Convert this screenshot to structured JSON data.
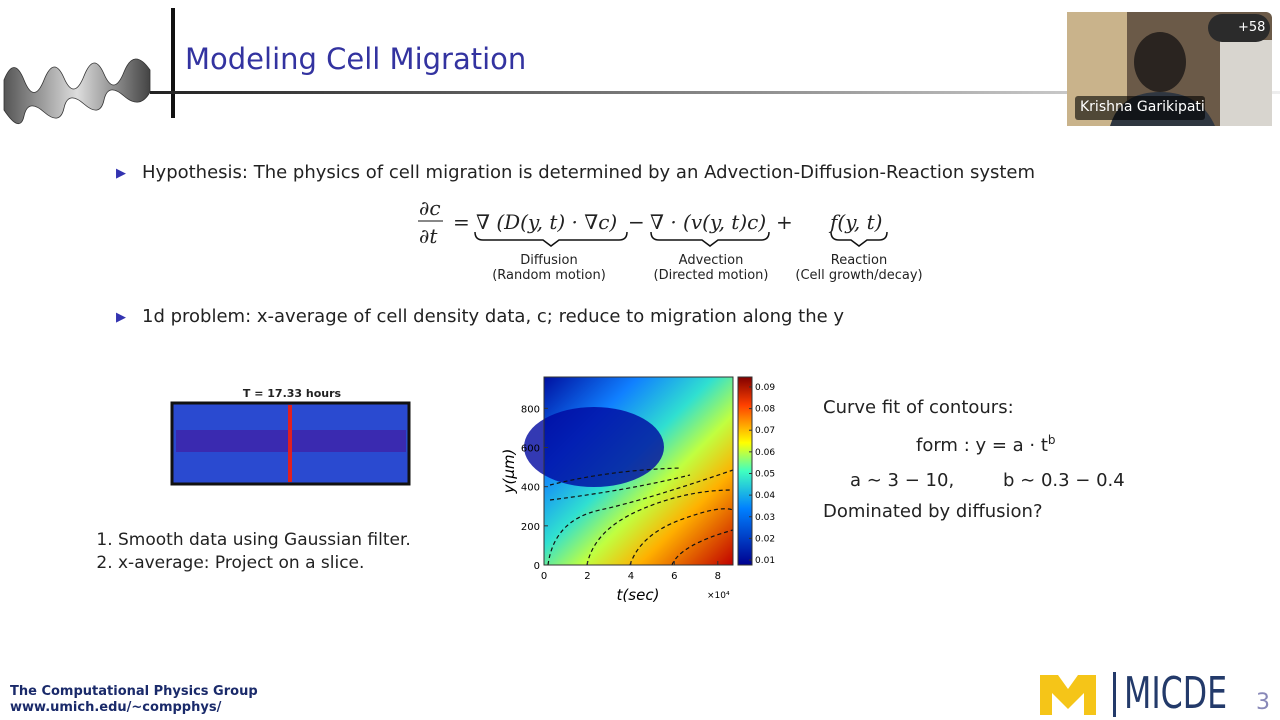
{
  "header": {
    "title": "Modeling Cell Migration"
  },
  "participants": {
    "count_label": "+58",
    "speaker": "Krishna Garikipati"
  },
  "bullets": [
    "Hypothesis: The physics of cell migration is determined by an Advection-Diffusion-Reaction system",
    "1d problem: x-average of cell density data, c; reduce to migration along the y"
  ],
  "equation": {
    "lhs_num": "∂c",
    "lhs_den": "∂t",
    "equals": "=",
    "terms": [
      {
        "expr": "∇ (D(y, t) · ∇c)",
        "label": "Diffusion",
        "sublabel": "(Random motion)",
        "op": "−"
      },
      {
        "expr": "∇ · (v(y, t)c)",
        "label": "Advection",
        "sublabel": "(Directed motion)",
        "op": "+"
      },
      {
        "expr": "f(y, t)",
        "label": "Reaction",
        "sublabel": "(Cell growth/decay)"
      }
    ]
  },
  "snapshot": {
    "title": "T = 17.33 hours"
  },
  "steps": [
    "Smooth data using Gaussian filter.",
    "x-average: Project on a slice."
  ],
  "plot": {
    "xlim": [
      0,
      8.7
    ],
    "xticks": [
      0,
      2,
      4,
      6,
      8
    ],
    "x_multiplier": "×10⁴",
    "xlabel": "t(sec)",
    "ylim": [
      0,
      960
    ],
    "yticks": [
      0,
      200,
      400,
      600,
      800
    ],
    "ylabel": "y(μm)",
    "colorbar_lim": [
      0.0077,
      0.0946
    ],
    "colorbar_ticks": [
      0.01,
      0.02,
      0.03,
      0.04,
      0.05,
      0.06,
      0.07,
      0.08,
      0.09
    ]
  },
  "curve_fit": {
    "title": "Curve fit of contours:",
    "form": "form : y = a · t",
    "exponent": "b",
    "params_a": "a ∼ 3 − 10,",
    "params_b": "b ∼ 0.3 − 0.4",
    "question": "Dominated by diffusion?"
  },
  "footer": {
    "group": "The Computational Physics Group",
    "url": "www.umich.edu/~compphys/",
    "logo": "MICDE",
    "page": "3"
  }
}
